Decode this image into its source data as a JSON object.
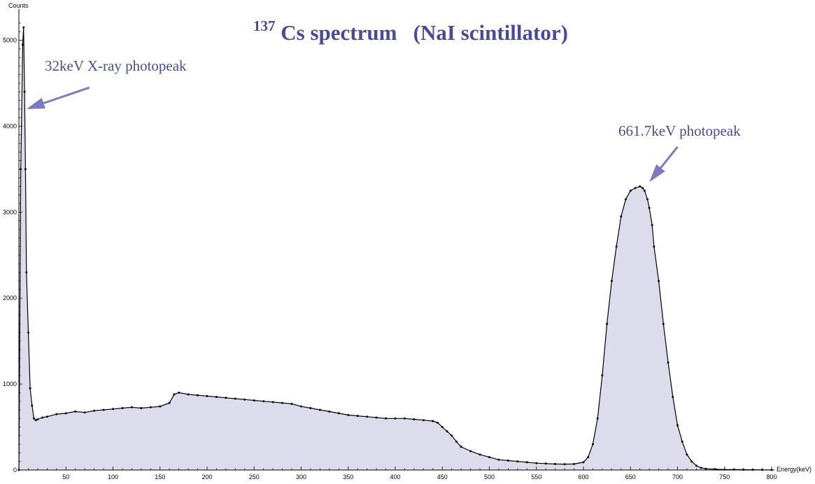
{
  "chart_data": {
    "type": "area",
    "title": {
      "superscript": "137",
      "main": " Cs spectrum   (NaI scintillator)"
    },
    "xlabel": "Energy(keV)",
    "ylabel": "Counts",
    "xlim": [
      0,
      800
    ],
    "ylim": [
      0,
      5200
    ],
    "x_ticks": [
      "50",
      "100",
      "150",
      "200",
      "250",
      "300",
      "350",
      "400",
      "450",
      "500",
      "550",
      "600",
      "650",
      "700",
      "750",
      "800"
    ],
    "y_ticks": [
      "0",
      "1000",
      "2000",
      "3000",
      "4000",
      "5000"
    ],
    "grid": false,
    "colors": {
      "fill": "#dcdcec",
      "line": "#000000",
      "annotation": "#4a4a98",
      "arrow": "#7a7ac0"
    },
    "annotations": [
      {
        "text": "32keV X-ray photopeak",
        "arrow_target": [
          8,
          4200
        ],
        "arrow_from": [
          75,
          4450
        ]
      },
      {
        "text": "661.7keV photopeak",
        "arrow_target": [
          670,
          3350
        ],
        "arrow_from": [
          700,
          3760
        ]
      }
    ],
    "series": [
      {
        "x": [
          0,
          2,
          4,
          5,
          6,
          7,
          8,
          10,
          12,
          14,
          16,
          18,
          20,
          25,
          30,
          40,
          50,
          60,
          70,
          80,
          90,
          100,
          110,
          120,
          130,
          140,
          150,
          160,
          165,
          170,
          180,
          190,
          200,
          210,
          220,
          230,
          240,
          250,
          260,
          270,
          280,
          290,
          300,
          310,
          320,
          330,
          340,
          350,
          360,
          370,
          380,
          390,
          400,
          410,
          420,
          430,
          440,
          445,
          450,
          455,
          460,
          465,
          470,
          480,
          490,
          500,
          510,
          520,
          530,
          540,
          550,
          560,
          570,
          580,
          590,
          600,
          605,
          610,
          615,
          620,
          625,
          630,
          635,
          640,
          645,
          650,
          655,
          660,
          663,
          665,
          668,
          670,
          673,
          675,
          680,
          685,
          690,
          695,
          700,
          705,
          710,
          715,
          720,
          725,
          730,
          740,
          750,
          760,
          770,
          780,
          790,
          800
        ],
        "y": [
          0,
          3500,
          4950,
          5150,
          4400,
          3500,
          2300,
          1600,
          950,
          750,
          600,
          580,
          590,
          610,
          620,
          650,
          660,
          680,
          670,
          690,
          700,
          710,
          720,
          730,
          720,
          730,
          740,
          780,
          880,
          900,
          880,
          870,
          860,
          850,
          840,
          830,
          820,
          810,
          800,
          790,
          780,
          770,
          740,
          720,
          700,
          680,
          660,
          640,
          630,
          620,
          610,
          600,
          600,
          600,
          590,
          580,
          570,
          550,
          500,
          450,
          400,
          330,
          270,
          220,
          180,
          150,
          120,
          110,
          100,
          90,
          80,
          75,
          70,
          68,
          70,
          90,
          150,
          300,
          600,
          1100,
          1700,
          2200,
          2600,
          2950,
          3150,
          3250,
          3280,
          3300,
          3280,
          3250,
          3150,
          3050,
          2850,
          2600,
          2200,
          1700,
          1250,
          850,
          520,
          330,
          180,
          100,
          50,
          25,
          15,
          10,
          5,
          5,
          4,
          3,
          2,
          1
        ]
      }
    ]
  }
}
